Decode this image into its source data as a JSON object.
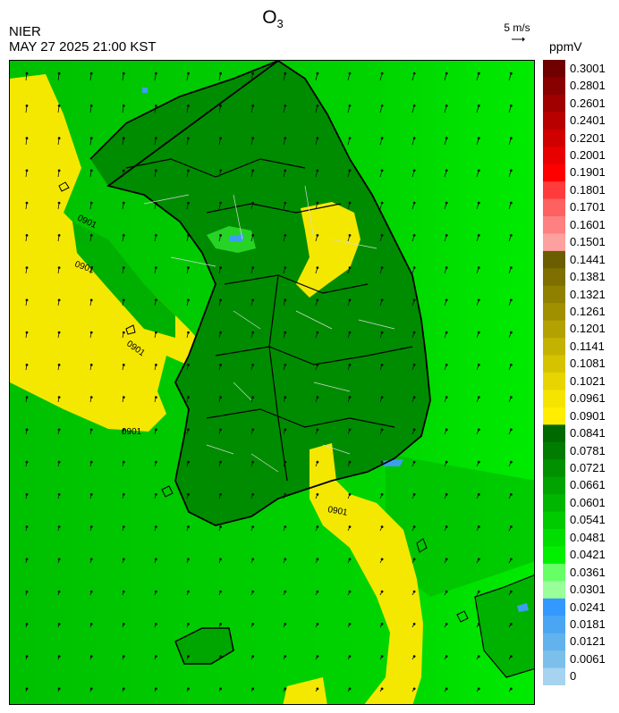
{
  "header": {
    "org": "NIER",
    "timestamp": "MAY 27 2025 21:00 KST",
    "title_main": "O",
    "title_sub": "3",
    "wind_ref_label": "5 m/s",
    "unit": "ppmV"
  },
  "colorbar": {
    "levels": [
      "0.3001",
      "0.2801",
      "0.2601",
      "0.2401",
      "0.2201",
      "0.2001",
      "0.1901",
      "0.1801",
      "0.1701",
      "0.1601",
      "0.1501",
      "0.1441",
      "0.1381",
      "0.1321",
      "0.1261",
      "0.1201",
      "0.1141",
      "0.1081",
      "0.1021",
      "0.0961",
      "0.0901",
      "0.0841",
      "0.0781",
      "0.0721",
      "0.0661",
      "0.0601",
      "0.0541",
      "0.0481",
      "0.0421",
      "0.0361",
      "0.0301",
      "0.0241",
      "0.0181",
      "0.0121",
      "0.0061",
      "0"
    ],
    "colors": [
      "#700000",
      "#880000",
      "#a00000",
      "#b80000",
      "#d00000",
      "#e80000",
      "#ff0000",
      "#ff3b3b",
      "#ff6060",
      "#ff8080",
      "#ffa0a0",
      "#6b5e00",
      "#7d6f00",
      "#8f8000",
      "#a09000",
      "#b2a100",
      "#c4b200",
      "#d6c300",
      "#e8d400",
      "#f5e400",
      "#ffee00",
      "#006a00",
      "#007d00",
      "#009000",
      "#00a300",
      "#00b600",
      "#00ca00",
      "#00dd00",
      "#00f000",
      "#66ff66",
      "#99ff99",
      "#3399ff",
      "#4aa6f2",
      "#62b2ee",
      "#7bbfea",
      "#a6d3ef"
    ]
  },
  "map": {
    "contour_label": "0901",
    "colors": {
      "sea_west": "#00c800",
      "sea_east": "#00e600",
      "land": "#008c00",
      "high_band": "#f5e800",
      "low": "#3d9ef0"
    }
  }
}
